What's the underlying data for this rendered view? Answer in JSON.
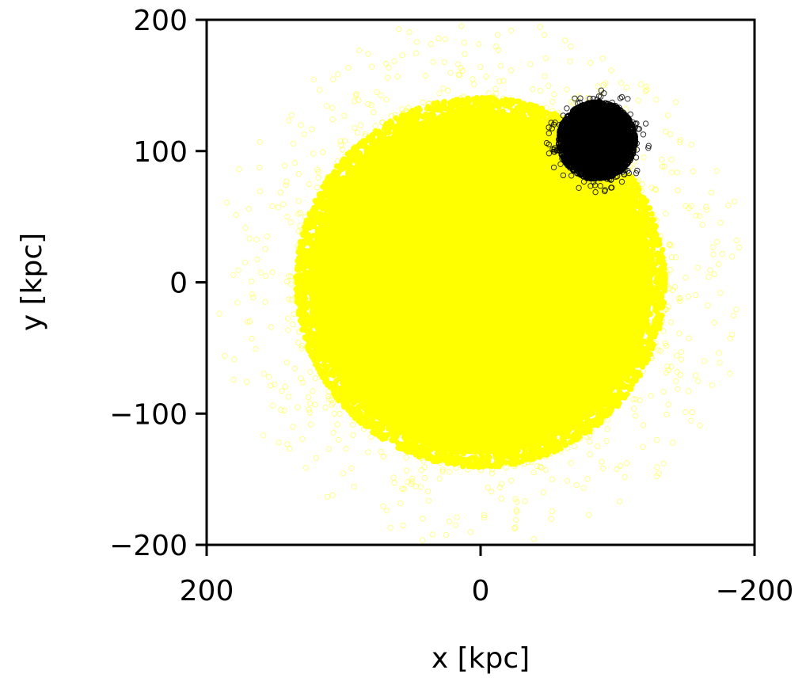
{
  "chart_data": {
    "type": "scatter",
    "title": "",
    "xlabel": "x [kpc]",
    "ylabel": "y [kpc]",
    "xlim": [
      200,
      -200
    ],
    "ylim": [
      -200,
      200
    ],
    "x_inverted": true,
    "xticks": [
      200,
      0,
      -200
    ],
    "yticks": [
      200,
      100,
      0,
      -100,
      -200
    ],
    "xtick_labels": [
      "200",
      "0",
      "−200"
    ],
    "ytick_labels": [
      "200",
      "100",
      "0",
      "−100",
      "−200"
    ],
    "grid": false,
    "legend": "none",
    "marker": "open-circle",
    "series": [
      {
        "color": "#ffff00",
        "distribution": "dense circular cloud",
        "center": [
          0,
          0
        ],
        "core_radius": 135,
        "outer_extent": 195
      },
      {
        "color": "#000000",
        "distribution": "compact circular cloud",
        "center": [
          -85,
          108
        ],
        "core_radius": 28,
        "outer_extent": 38
      }
    ]
  }
}
